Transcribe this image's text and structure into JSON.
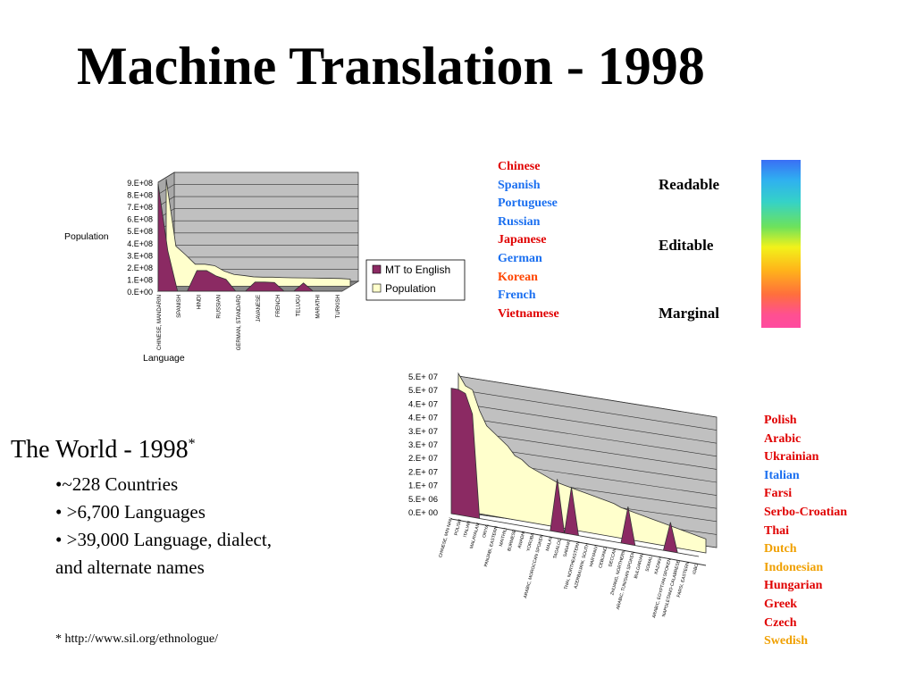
{
  "title": "Machine Translation - 1998",
  "chart_data": [
    {
      "type": "area",
      "ylabel": "Population",
      "xlabel": "Language",
      "y_tick_labels": [
        "9.E+08",
        "8.E+08",
        "7.E+08",
        "6.E+08",
        "5.E+08",
        "4.E+08",
        "3.E+08",
        "2.E+08",
        "1.E+08",
        "0.E+00"
      ],
      "x_tick_labels": [
        "CHINESE, MANDARIN",
        "SPANISH",
        "HINDI",
        "RUSSIAN",
        "GERMAN, STANDARD",
        "JAVANESE",
        "FRENCH",
        "TELUGU",
        "MARATHI",
        "TURKISH"
      ],
      "ylim": [
        0,
        900000000
      ],
      "legend": {
        "placement": "right",
        "entries": [
          "MT to English",
          "Population"
        ]
      },
      "legend_colors": {
        "MT to English": "#8b2a63",
        "Population": "#ffffcc"
      },
      "x": [
        0,
        1,
        2,
        3,
        4,
        5,
        6,
        7,
        8,
        9,
        10,
        11,
        12,
        13,
        14,
        15,
        16,
        17,
        18,
        19
      ],
      "series": [
        {
          "name": "Population",
          "values": [
            885000000,
            332000000,
            260000000,
            182000000,
            182000000,
            170000000,
            125000000,
            98000000,
            89000000,
            78000000,
            75000000,
            75000000,
            72000000,
            70000000,
            69000000,
            68000000,
            67000000,
            66000000,
            64000000,
            59000000
          ]
        },
        {
          "name": "MT to English",
          "values": [
            885000000,
            332000000,
            0,
            0,
            170000000,
            170000000,
            125000000,
            98000000,
            0,
            0,
            75000000,
            75000000,
            72000000,
            0,
            0,
            68000000,
            0,
            0,
            0,
            0
          ]
        }
      ]
    },
    {
      "type": "area",
      "y_tick_labels": [
        "5.E+ 07",
        "5.E+ 07",
        "4.E+ 07",
        "4.E+ 07",
        "3.E+ 07",
        "3.E+ 07",
        "2.E+ 07",
        "2.E+ 07",
        "1.E+ 07",
        "5.E+ 06",
        "0.E+ 00"
      ],
      "x_tick_labels": [
        "CHINESE, MIN NAN",
        "POLISH",
        "ITALIAN",
        "MALAYALAM",
        "ORIYA",
        "PANJABI, EASTERN",
        "MAITHILI",
        "BURMESE",
        "AWADHI",
        "YORUBA",
        "ARABIC, MOROCCAN SPOKEN",
        "MALAY",
        "TAGALOG",
        "SARAIKI",
        "THAI, NORTHEASTERN",
        "AZERBAIJANI, SOUTH",
        "HARYANVI",
        "CEBUANO",
        "DECCAN",
        "ZHUANG, NORTHERN",
        "ARABIC, TUNISIAN SPOKEN",
        "BULGARIAN",
        "SOMALI",
        "KAZAKH",
        "ARABIC, EGYPTIAN SPOKEN",
        "NAPOLETANO-CALABRESE",
        "FARSI, EASTERN",
        "IGBO"
      ],
      "ylim": [
        0,
        50000000
      ],
      "series": [
        {
          "name": "Population",
          "values": [
            49000000,
            45000000,
            44000000,
            37000000,
            32000000,
            30000000,
            28000000,
            26000000,
            23000000,
            22000000,
            20000000,
            19000000,
            18000000,
            17000000,
            16000000,
            15500000,
            15000000,
            14500000,
            14000000,
            13500000,
            13000000,
            12500000,
            12000000,
            11000000,
            10500000,
            10000000,
            9500000,
            9000000,
            8500000,
            8000000,
            7500000,
            7000000,
            6500000,
            6000000,
            5500000,
            5000000
          ]
        },
        {
          "name": "MT to English",
          "values": [
            45000000,
            45000000,
            44000000,
            37000000,
            0,
            0,
            0,
            0,
            0,
            0,
            0,
            0,
            0,
            0,
            0,
            19000000,
            0,
            17000000,
            0,
            0,
            0,
            0,
            0,
            0,
            0,
            13500000,
            0,
            0,
            0,
            0,
            0,
            10500000,
            0,
            0,
            0,
            0
          ]
        }
      ]
    }
  ],
  "top_languages": [
    {
      "name": "Chinese",
      "color": "#e00000"
    },
    {
      "name": "Spanish",
      "color": "#1a6ff0"
    },
    {
      "name": "Portuguese",
      "color": "#1a6ff0"
    },
    {
      "name": "Russian",
      "color": "#1a6ff0"
    },
    {
      "name": "Japanese",
      "color": "#e00000"
    },
    {
      "name": "German",
      "color": "#1a6ff0"
    },
    {
      "name": "Korean",
      "color": "#ff4500"
    },
    {
      "name": "French",
      "color": "#1a6ff0"
    },
    {
      "name": "Vietnamese",
      "color": "#e00000"
    }
  ],
  "quality_scale": {
    "labels": [
      "Readable",
      "Editable",
      "Marginal"
    ],
    "colors": {
      "top": "#3a6ff5",
      "mid": "#f2f21a",
      "bottom": "#ff4aa0"
    }
  },
  "second_languages": [
    {
      "name": "Polish",
      "color": "#e00000"
    },
    {
      "name": "Arabic",
      "color": "#e00000"
    },
    {
      "name": "Ukrainian",
      "color": "#e00000"
    },
    {
      "name": "Italian",
      "color": "#1a6ff0"
    },
    {
      "name": "Farsi",
      "color": "#e00000"
    },
    {
      "name": "Serbo-Croatian",
      "color": "#e00000"
    },
    {
      "name": "Thai",
      "color": "#e00000"
    },
    {
      "name": "Dutch",
      "color": "#f0a000"
    },
    {
      "name": "Indonesian",
      "color": "#f0a000"
    },
    {
      "name": "Hungarian",
      "color": "#e00000"
    },
    {
      "name": "Greek",
      "color": "#e00000"
    },
    {
      "name": "Czech",
      "color": "#e00000"
    },
    {
      "name": "Swedish",
      "color": "#f0a000"
    }
  ],
  "world": {
    "title": "The World - 1998",
    "title_mark": "*",
    "bullets": [
      "•~228 Countries",
      "• >6,700 Languages",
      "• >39,000 Language, dialect,",
      "and alternate names"
    ],
    "footnote": "* http://www.sil.org/ethnologue/"
  }
}
